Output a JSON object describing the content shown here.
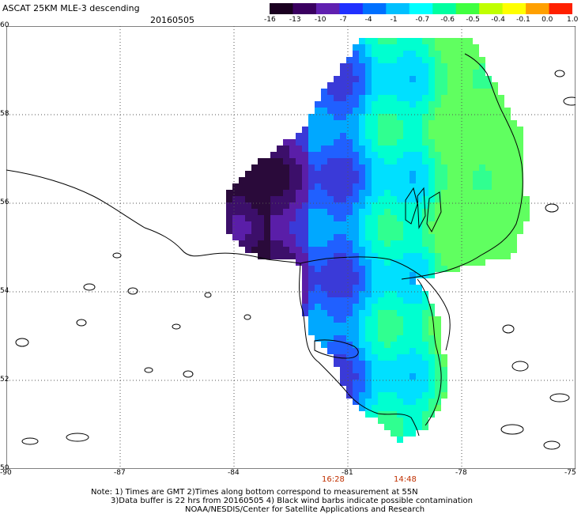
{
  "header": {
    "title": "ASCAT 25KM MLE-3 descending",
    "date": "20160505"
  },
  "colorbar": {
    "labels": [
      "-16",
      "-13",
      "-10",
      "-7",
      "-4",
      "-1",
      "-0.7",
      "-0.6",
      "-0.5",
      "-0.4",
      "-0.1",
      "0.0",
      "1.0"
    ],
    "colors": [
      "#1a0020",
      "#3a0060",
      "#6020b0",
      "#2030ff",
      "#0070ff",
      "#00c0ff",
      "#00ffff",
      "#00ffa0",
      "#40ff40",
      "#c0ff00",
      "#ffff00",
      "#ffa000",
      "#ff2000"
    ]
  },
  "axes": {
    "y_labels": [
      "60",
      "58",
      "56",
      "54",
      "52",
      "50"
    ],
    "x_labels": [
      "-90",
      "-87",
      "-84",
      "-81",
      "-78",
      "-75"
    ],
    "lat_range": [
      50,
      60
    ],
    "lon_range": [
      -90,
      -75
    ]
  },
  "times": {
    "first": "16:28",
    "second": "14:48",
    "color": "#c03000"
  },
  "footer": {
    "line1": "Note: 1) Times are GMT 2)Times along bottom correspond to measurement at 55N",
    "line2": "3)Data buffer is 22 hrs from 20160505 4) Black wind barbs indicate possible contamination",
    "line3": "NOAA/NESDIS/Center for Satellite Applications and Research"
  }
}
